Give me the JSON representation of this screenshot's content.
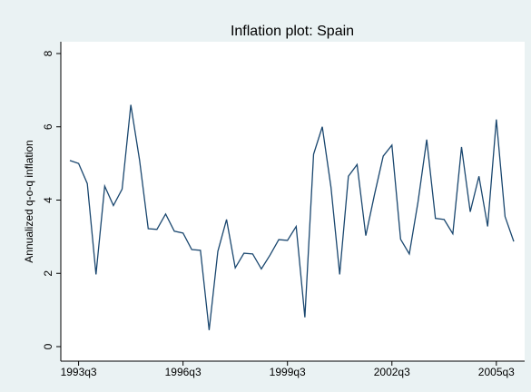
{
  "chart_data": {
    "type": "line",
    "title": "Inflation plot: Spain",
    "y_label": "Annualized q-o-q inflation",
    "categories": [
      null,
      "1993q3",
      null,
      null,
      null,
      null,
      null,
      null,
      null,
      null,
      null,
      null,
      null,
      "1996q3",
      null,
      null,
      null,
      null,
      null,
      null,
      null,
      null,
      null,
      null,
      null,
      "1999q3",
      null,
      null,
      null,
      null,
      null,
      null,
      null,
      null,
      null,
      null,
      null,
      "2002q3",
      null,
      null,
      null,
      null,
      null,
      null,
      null,
      null,
      null,
      null,
      null,
      "2005q3",
      null,
      null
    ],
    "series": [
      {
        "name": "Annualized q-o-q inflation",
        "color": "#1a476f",
        "values": [
          5.08,
          5.0,
          4.45,
          1.97,
          4.38,
          3.85,
          4.3,
          6.6,
          5.1,
          3.22,
          3.2,
          3.62,
          3.15,
          3.1,
          2.65,
          2.63,
          0.45,
          2.6,
          3.47,
          2.15,
          2.55,
          2.53,
          2.12,
          2.5,
          2.92,
          2.9,
          3.28,
          0.8,
          5.25,
          6.0,
          4.35,
          1.97,
          4.65,
          4.97,
          3.03,
          4.15,
          5.2,
          5.5,
          2.93,
          2.53,
          3.95,
          5.65,
          3.5,
          3.47,
          3.08,
          5.45,
          3.68,
          4.65,
          3.28,
          6.2,
          3.55,
          2.87
        ]
      }
    ],
    "ylim": [
      0,
      8
    ],
    "yticks": [
      0,
      2,
      4,
      6,
      8
    ],
    "grid": false
  }
}
